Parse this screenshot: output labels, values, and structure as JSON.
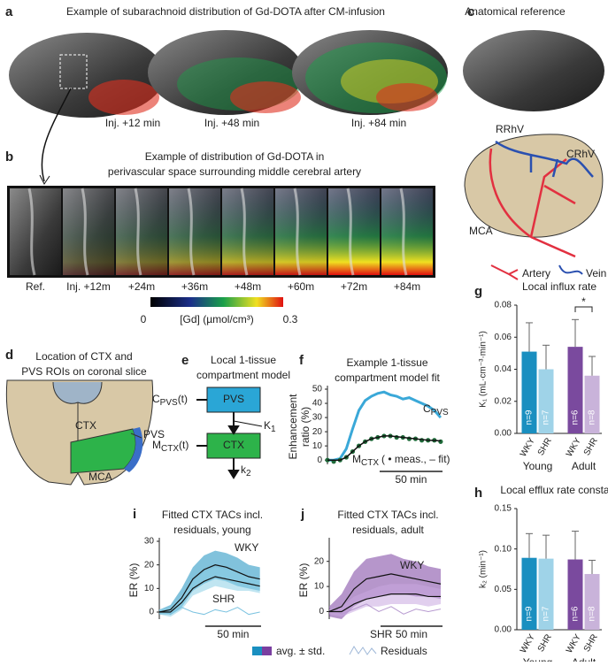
{
  "panel_labels": [
    "a",
    "b",
    "c",
    "d",
    "e",
    "f",
    "g",
    "h",
    "i",
    "j"
  ],
  "a": {
    "title": "Example of subarachnoid distribution of Gd-DOTA after CM-infusion",
    "captions": [
      "Inj. +12 min",
      "Inj. +48 min",
      "Inj. +84 min"
    ]
  },
  "b": {
    "title": [
      "Example of distribution of Gd-DOTA in",
      "perivascular space surrounding middle cerebral artery"
    ],
    "frames": [
      "Ref.",
      "Inj. +12m",
      "+24m",
      "+36m",
      "+48m",
      "+60m",
      "+72m",
      "+84m"
    ],
    "colorbar": {
      "ticks": [
        0,
        0.3
      ],
      "label": "[Gd] (µmol/cm³)"
    }
  },
  "c": {
    "title": "Anatomical reference",
    "vessels": [
      "RRhV",
      "CRhV",
      "MCA"
    ],
    "legend": [
      "Artery",
      "Vein"
    ]
  },
  "d": {
    "title": [
      "Location of CTX and",
      "PVS ROIs on coronal slice"
    ],
    "regions": [
      "CTX",
      "PVS",
      "MCA"
    ]
  },
  "e": {
    "title": [
      "Local 1-tissue",
      "compartment model"
    ],
    "boxes": [
      "PVS",
      "CTX"
    ],
    "input": {
      "main": "C",
      "sub": "PVS",
      "suffix": "(t)"
    },
    "output": {
      "main": "M",
      "sub": "CTX",
      "suffix": "(t)"
    },
    "rates": [
      {
        "main": "K",
        "sub": "1"
      },
      {
        "main": "k",
        "sub": "2"
      }
    ]
  },
  "legend": [
    "avg. ± std.",
    "Residuals"
  ],
  "chart_data": [
    {
      "type": "line",
      "title": [
        "Example 1-tissue",
        "compartment model fit"
      ],
      "ylabel": [
        "Enhancement",
        "ratio (%)"
      ],
      "x": [
        0,
        5,
        10,
        15,
        20,
        25,
        30,
        35,
        40,
        45,
        50,
        55,
        60,
        65,
        70,
        75,
        80,
        85,
        90
      ],
      "xlim": [
        0,
        95
      ],
      "ylim": [
        -3,
        50
      ],
      "yticks": [
        0,
        10,
        20,
        30,
        40,
        50
      ],
      "scalebar": 50,
      "scalebar_label": "50 min",
      "series": [
        {
          "name": "C",
          "name_sub": "PVS",
          "color": "#3aa8d8",
          "values": [
            0,
            0,
            1,
            8,
            22,
            35,
            42,
            45,
            47,
            48,
            46,
            45,
            43,
            44,
            42,
            40,
            38,
            35,
            30
          ]
        },
        {
          "name": "M",
          "name_sub": "CTX",
          "name_suffix": "( • meas., ‒ fit)",
          "color": "#1f6b3a",
          "marker": "dot",
          "values": [
            0,
            -1,
            0,
            2,
            6,
            10,
            13,
            15,
            16,
            17,
            17,
            16,
            16,
            15,
            15,
            14,
            14,
            14,
            13
          ]
        },
        {
          "color": "#111111",
          "values": [
            0,
            0,
            0,
            2,
            6,
            10,
            13,
            15,
            16,
            17,
            17,
            16.5,
            16,
            15.5,
            15,
            14.5,
            14,
            13.8,
            13.5
          ]
        }
      ]
    },
    {
      "type": "bar",
      "title": "Local influx rate",
      "ylabel": "K₁ (mL·cm⁻³·min⁻¹)",
      "categories": [
        "WKY",
        "SHR",
        "WKY",
        "SHR"
      ],
      "groups": [
        "Young",
        "Adult"
      ],
      "values": [
        0.051,
        0.04,
        0.054,
        0.036
      ],
      "errors": [
        0.018,
        0.015,
        0.017,
        0.012
      ],
      "n_labels": [
        "n=9",
        "n=7",
        "n=6",
        "n=8"
      ],
      "colors": [
        "#1a8fc0",
        "#9fd3e8",
        "#7a4a9e",
        "#c9b3da"
      ],
      "ylim": [
        0,
        0.08
      ],
      "yticks": [
        {
          "value": 0,
          "label": "0.00"
        },
        0.02,
        0.04,
        0.06,
        0.08
      ],
      "significance": "*"
    },
    {
      "type": "bar",
      "title": "Local efflux rate constant",
      "ylabel": "k₂ (min⁻¹)",
      "categories": [
        "WKY",
        "SHR",
        "WKY",
        "SHR"
      ],
      "groups": [
        "Young",
        "Adult"
      ],
      "values": [
        0.089,
        0.088,
        0.087,
        0.069
      ],
      "errors": [
        0.03,
        0.029,
        0.035,
        0.017
      ],
      "n_labels": [
        "n=9",
        "n=7",
        "n=6",
        "n=8"
      ],
      "colors": [
        "#1a8fc0",
        "#9fd3e8",
        "#7a4a9e",
        "#c9b3da"
      ],
      "ylim": [
        0,
        0.15
      ],
      "yticks": [
        {
          "value": 0,
          "label": "0.00"
        },
        0.05,
        {
          "value": 0.1,
          "label": "0.10"
        },
        0.15
      ]
    },
    {
      "type": "line",
      "title": [
        "Fitted CTX TACs incl.",
        "residuals, young"
      ],
      "ylabel": "ER (%)",
      "x": [
        0,
        10,
        20,
        30,
        40,
        50,
        60,
        70,
        80,
        90
      ],
      "xlim": [
        0,
        95
      ],
      "ylim": [
        -3,
        30
      ],
      "yticks": [
        0,
        10,
        20,
        30
      ],
      "scalebar": 50,
      "scalebar_label": "50 min",
      "series": [
        {
          "name": "WKY",
          "color": "#1a8fc0",
          "values": [
            0,
            1,
            6,
            14,
            18,
            20,
            19,
            17,
            15,
            14
          ],
          "std": [
            1,
            2,
            4,
            5,
            6,
            6,
            6,
            6,
            5,
            5
          ]
        },
        {
          "name": "SHR",
          "color": "#8ccfe6",
          "values": [
            0,
            0,
            4,
            10,
            13,
            15,
            14,
            13,
            12,
            11
          ],
          "std": [
            1,
            2,
            3,
            3,
            4,
            4,
            4,
            4,
            3,
            3
          ]
        }
      ],
      "residuals": [
        1,
        -1,
        2,
        0,
        -1,
        1,
        0,
        2,
        -1,
        0
      ],
      "residual_color": "#7cc3e0"
    },
    {
      "type": "line",
      "title": [
        "Fitted CTX TACs incl.",
        "residuals, adult"
      ],
      "ylabel": "ER (%)",
      "x": [
        0,
        10,
        20,
        30,
        40,
        50,
        60,
        70,
        80,
        90
      ],
      "xlim": [
        0,
        95
      ],
      "ylim": [
        -3,
        28
      ],
      "yticks": [
        0,
        10,
        20
      ],
      "scalebar": 50,
      "scalebar_label": "50 min",
      "series": [
        {
          "name": "WKY",
          "color": "#7a3fa0",
          "values": [
            0,
            2,
            9,
            13,
            14,
            15,
            14,
            13,
            12,
            11
          ],
          "std": [
            2,
            5,
            7,
            8,
            8,
            8,
            7,
            7,
            6,
            6
          ]
        },
        {
          "name": "SHR",
          "color": "#c9a8e0",
          "values": [
            0,
            0,
            3,
            5,
            6,
            7,
            7,
            7,
            6,
            6
          ],
          "std": [
            1,
            2,
            3,
            3,
            4,
            4,
            4,
            4,
            4,
            3
          ]
        }
      ],
      "residuals": [
        2,
        -1,
        1,
        3,
        0,
        2,
        -1,
        1,
        0,
        1
      ],
      "residual_color": "#b79ad0"
    }
  ]
}
